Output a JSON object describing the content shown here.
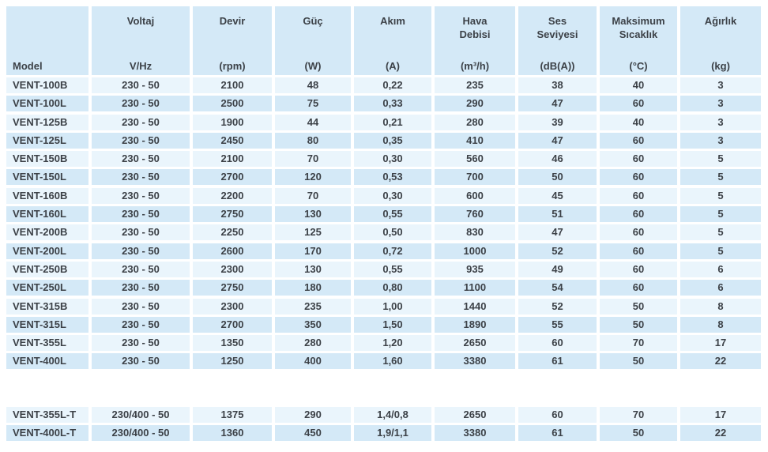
{
  "colors": {
    "row_light": "#eaf5fc",
    "row_dark": "#d4e9f7",
    "header_bg": "#d4e9f7",
    "text": "#3c4147",
    "background": "#ffffff"
  },
  "table": {
    "columns": [
      {
        "key": "model",
        "title": "",
        "unit": "Model"
      },
      {
        "key": "voltaj",
        "title": "Voltaj",
        "unit": "V/Hz"
      },
      {
        "key": "devir",
        "title": "Devir",
        "unit": "(rpm)"
      },
      {
        "key": "guc",
        "title": "Güç",
        "unit": "(W)"
      },
      {
        "key": "akim",
        "title": "Akım",
        "unit": "(A)"
      },
      {
        "key": "hava",
        "title": "Hava\nDebisi",
        "unit": "(m³/h)"
      },
      {
        "key": "ses",
        "title": "Ses\nSeviyesi",
        "unit": "(dB(A))"
      },
      {
        "key": "sicaklik",
        "title": "Maksimum\nSıcaklık",
        "unit": "(°C)"
      },
      {
        "key": "agirlik",
        "title": "Ağırlık",
        "unit": "(kg)"
      }
    ],
    "rows_monophase": [
      [
        "VENT-100B",
        "230 - 50",
        "2100",
        "48",
        "0,22",
        "235",
        "38",
        "40",
        "3"
      ],
      [
        "VENT-100L",
        "230 - 50",
        "2500",
        "75",
        "0,33",
        "290",
        "47",
        "60",
        "3"
      ],
      [
        "VENT-125B",
        "230 - 50",
        "1900",
        "44",
        "0,21",
        "280",
        "39",
        "40",
        "3"
      ],
      [
        "VENT-125L",
        "230 - 50",
        "2450",
        "80",
        "0,35",
        "410",
        "47",
        "60",
        "3"
      ],
      [
        "VENT-150B",
        "230 - 50",
        "2100",
        "70",
        "0,30",
        "560",
        "46",
        "60",
        "5"
      ],
      [
        "VENT-150L",
        "230 - 50",
        "2700",
        "120",
        "0,53",
        "700",
        "50",
        "60",
        "5"
      ],
      [
        "VENT-160B",
        "230 - 50",
        "2200",
        "70",
        "0,30",
        "600",
        "45",
        "60",
        "5"
      ],
      [
        "VENT-160L",
        "230 - 50",
        "2750",
        "130",
        "0,55",
        "760",
        "51",
        "60",
        "5"
      ],
      [
        "VENT-200B",
        "230 - 50",
        "2250",
        "125",
        "0,50",
        "830",
        "47",
        "60",
        "5"
      ],
      [
        "VENT-200L",
        "230 - 50",
        "2600",
        "170",
        "0,72",
        "1000",
        "52",
        "60",
        "5"
      ],
      [
        "VENT-250B",
        "230 - 50",
        "2300",
        "130",
        "0,55",
        "935",
        "49",
        "60",
        "6"
      ],
      [
        "VENT-250L",
        "230 - 50",
        "2750",
        "180",
        "0,80",
        "1100",
        "54",
        "60",
        "6"
      ],
      [
        "VENT-315B",
        "230 - 50",
        "2300",
        "235",
        "1,00",
        "1440",
        "52",
        "50",
        "8"
      ],
      [
        "VENT-315L",
        "230 - 50",
        "2700",
        "350",
        "1,50",
        "1890",
        "55",
        "50",
        "8"
      ],
      [
        "VENT-355L",
        "230 - 50",
        "1350",
        "280",
        "1,20",
        "2650",
        "60",
        "70",
        "17"
      ],
      [
        "VENT-400L",
        "230 - 50",
        "1250",
        "400",
        "1,60",
        "3380",
        "61",
        "50",
        "22"
      ]
    ],
    "rows_triphase": [
      [
        "VENT-355L-T",
        "230/400 - 50",
        "1375",
        "290",
        "1,4/0,8",
        "2650",
        "60",
        "70",
        "17"
      ],
      [
        "VENT-400L-T",
        "230/400 - 50",
        "1360",
        "450",
        "1,9/1,1",
        "3380",
        "61",
        "50",
        "22"
      ]
    ]
  }
}
